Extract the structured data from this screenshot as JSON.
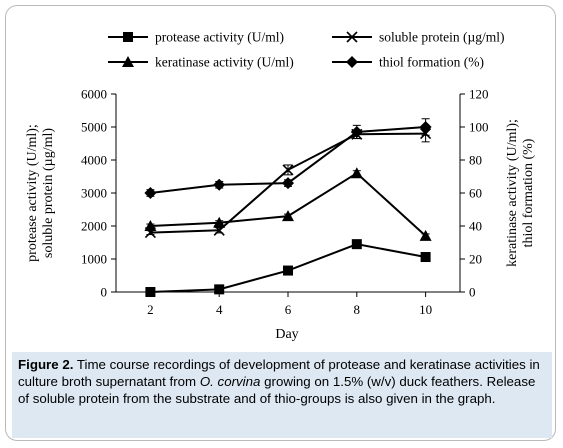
{
  "chart_data": {
    "type": "line",
    "x": [
      2,
      4,
      6,
      8,
      10
    ],
    "xlabel": "Day",
    "x_ticks": [
      "2",
      "4",
      "6",
      "8",
      "10"
    ],
    "ylabel_left": [
      "protease activity (U/ml);",
      "soluble protein (µg/ml)"
    ],
    "ylabel_right": [
      "keratinase activity (U/ml);",
      "thiol formation (%)"
    ],
    "ylim_left": [
      0,
      6000
    ],
    "ylim_right": [
      0,
      120
    ],
    "yticks_left": [
      "0",
      "1000",
      "2000",
      "3000",
      "4000",
      "5000",
      "6000"
    ],
    "yticks_right": [
      "0",
      "20",
      "40",
      "60",
      "80",
      "100",
      "120"
    ],
    "grid": false,
    "legend_position": "top",
    "series": [
      {
        "name": "protease activity  (U/ml)",
        "marker": "square",
        "axis": "left",
        "values": [
          0,
          80,
          650,
          1450,
          1060
        ],
        "errors": [
          20,
          40,
          60,
          60,
          60
        ]
      },
      {
        "name": "soluble protein (µg/ml)",
        "marker": "x",
        "axis": "left",
        "values": [
          1800,
          1870,
          3700,
          4780,
          4800
        ],
        "errors": [
          60,
          80,
          150,
          130,
          250
        ]
      },
      {
        "name": "keratinase activity (U/ml)",
        "marker": "triangle",
        "axis": "right",
        "values": [
          40,
          42,
          46,
          72,
          34
        ],
        "errors": [
          1.2,
          1.2,
          1.2,
          1.5,
          1.2
        ]
      },
      {
        "name": "thiol formation (%)",
        "marker": "diamond",
        "axis": "right",
        "values": [
          60,
          65,
          66,
          97,
          100
        ],
        "errors": [
          2,
          2,
          2,
          4,
          5
        ]
      }
    ]
  },
  "caption": {
    "label": "Figure 2.",
    "text_part1": " Time course recordings of development of protease and keratinase activities in culture broth supernatant from ",
    "species": "O. corvina",
    "text_part2": " growing on 1.5% (w/v) duck feathers. Release of soluble protein from the substrate and of thio-groups is also given in the graph."
  }
}
